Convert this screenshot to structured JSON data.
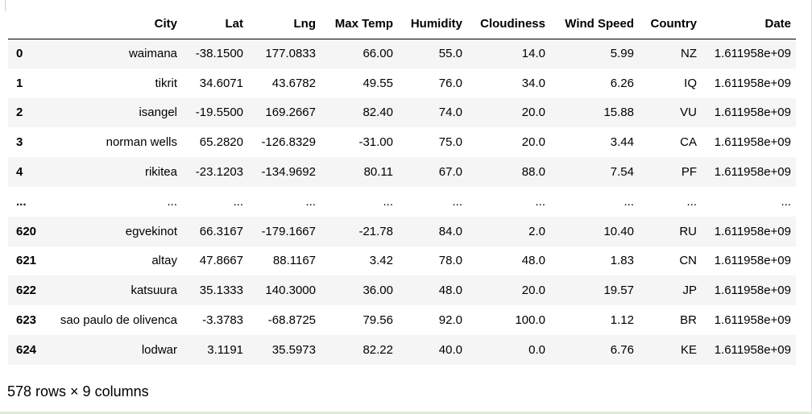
{
  "columns": [
    "",
    "City",
    "Lat",
    "Lng",
    "Max Temp",
    "Humidity",
    "Cloudiness",
    "Wind Speed",
    "Country",
    "Date"
  ],
  "rows": [
    [
      "0",
      "waimana",
      "-38.1500",
      "177.0833",
      "66.00",
      "55.0",
      "14.0",
      "5.99",
      "NZ",
      "1.611958e+09"
    ],
    [
      "1",
      "tikrit",
      "34.6071",
      "43.6782",
      "49.55",
      "76.0",
      "34.0",
      "6.26",
      "IQ",
      "1.611958e+09"
    ],
    [
      "2",
      "isangel",
      "-19.5500",
      "169.2667",
      "82.40",
      "74.0",
      "20.0",
      "15.88",
      "VU",
      "1.611958e+09"
    ],
    [
      "3",
      "norman wells",
      "65.2820",
      "-126.8329",
      "-31.00",
      "75.0",
      "20.0",
      "3.44",
      "CA",
      "1.611958e+09"
    ],
    [
      "4",
      "rikitea",
      "-23.1203",
      "-134.9692",
      "80.11",
      "67.0",
      "88.0",
      "7.54",
      "PF",
      "1.611958e+09"
    ],
    [
      "...",
      "...",
      "...",
      "...",
      "...",
      "...",
      "...",
      "...",
      "...",
      "..."
    ],
    [
      "620",
      "egvekinot",
      "66.3167",
      "-179.1667",
      "-21.78",
      "84.0",
      "2.0",
      "10.40",
      "RU",
      "1.611958e+09"
    ],
    [
      "621",
      "altay",
      "47.8667",
      "88.1167",
      "3.42",
      "78.0",
      "48.0",
      "1.83",
      "CN",
      "1.611958e+09"
    ],
    [
      "622",
      "katsuura",
      "35.1333",
      "140.3000",
      "36.00",
      "48.0",
      "20.0",
      "19.57",
      "JP",
      "1.611958e+09"
    ],
    [
      "623",
      "sao paulo de olivenca",
      "-3.3783",
      "-68.8725",
      "79.56",
      "92.0",
      "100.0",
      "1.12",
      "BR",
      "1.611958e+09"
    ],
    [
      "624",
      "lodwar",
      "3.1191",
      "35.5973",
      "82.22",
      "40.0",
      "0.0",
      "6.76",
      "KE",
      "1.611958e+09"
    ]
  ],
  "summary": "578 rows × 9 columns"
}
